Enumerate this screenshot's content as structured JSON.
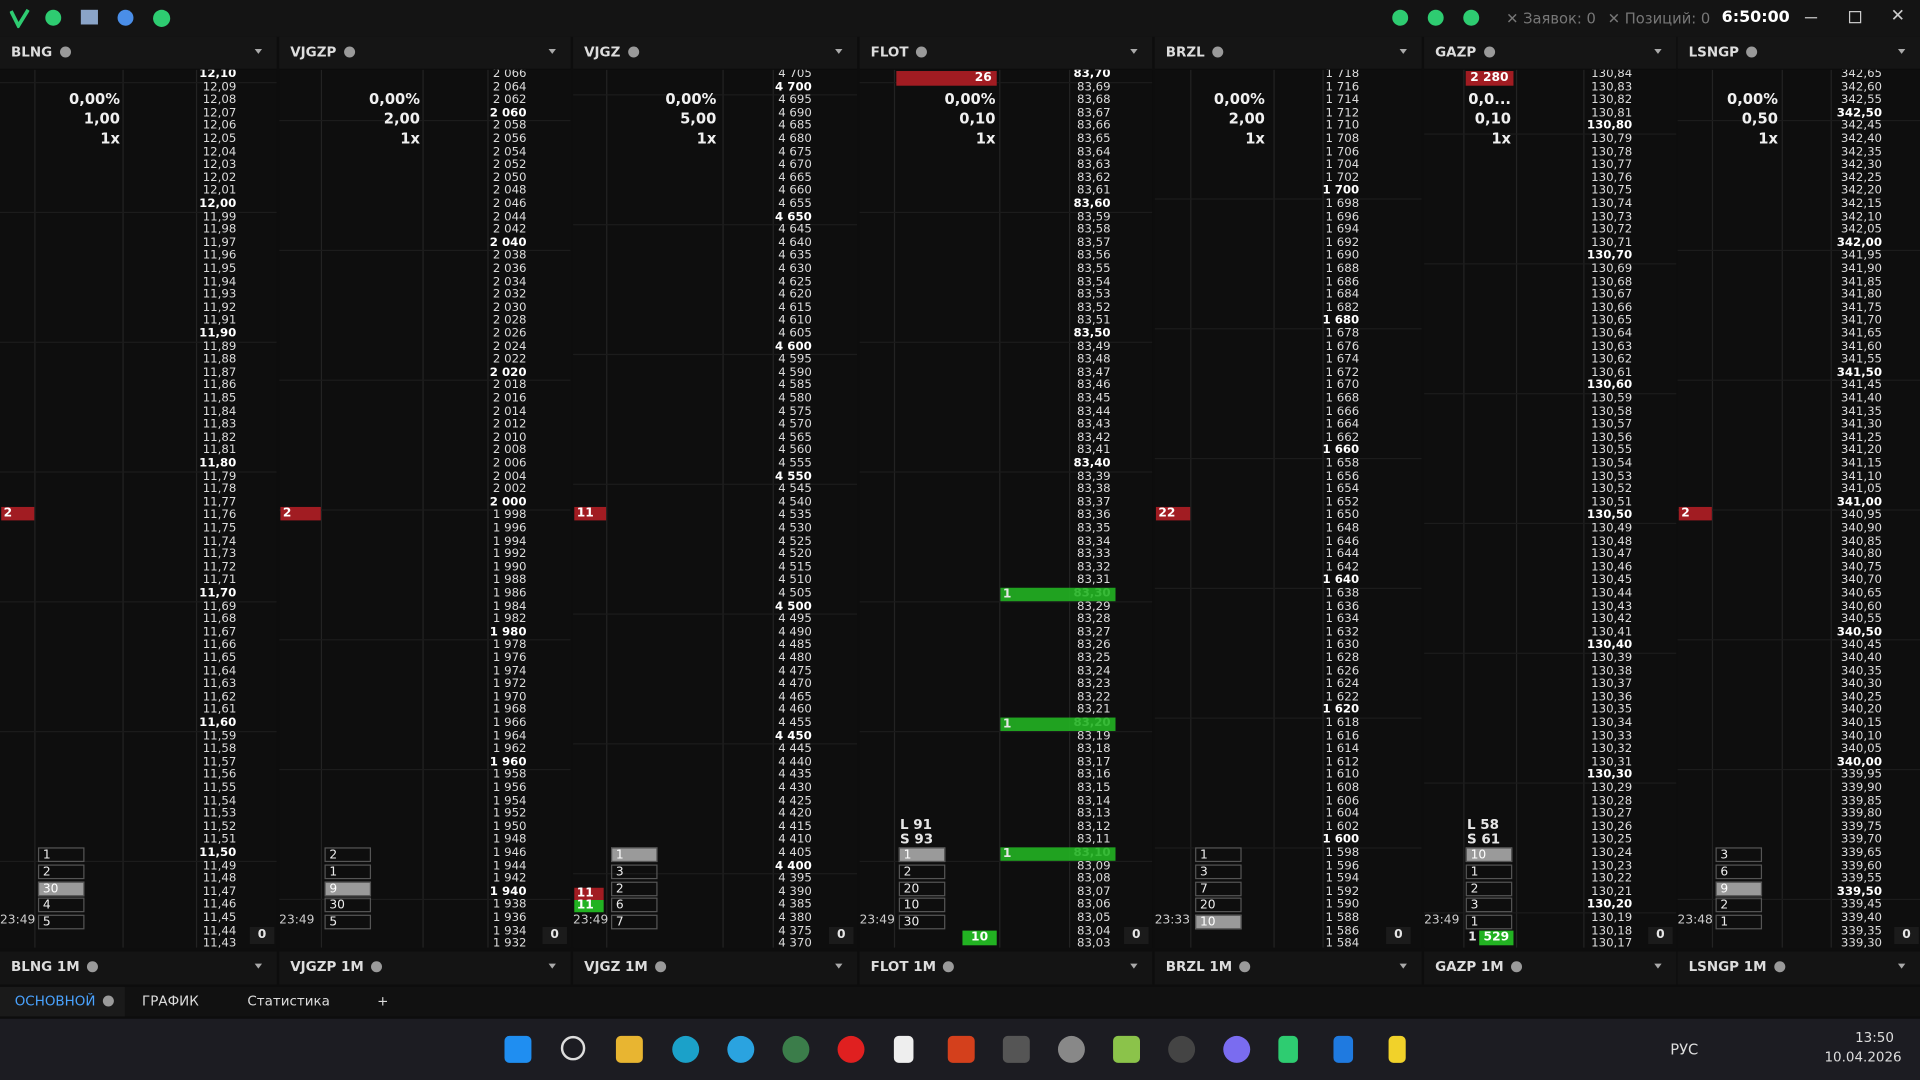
{
  "topbar": {
    "orders": "Заявок: 0",
    "positions": "Позиций: 0",
    "time": "6:50:00"
  },
  "panels": [
    {
      "name": "BLNG",
      "stats": [
        "0,00%",
        "1,00",
        "1x"
      ],
      "marker": "2",
      "sizes": [
        "1",
        "2",
        "30",
        "4",
        "5"
      ],
      "time": "23:49",
      "bottom": "0",
      "chart_tab": "BLNG 1M",
      "ladder": [
        "12,10",
        "12,09",
        "12,08",
        "12,07",
        "12,06",
        "12,05",
        "12,04",
        "12,03",
        "12,02",
        "12,01",
        "12,00",
        "11,99",
        "11,98",
        "11,97",
        "11,96",
        "11,95",
        "11,94",
        "11,93",
        "11,92",
        "11,91",
        "11,90",
        "11,89",
        "11,88",
        "11,87",
        "11,86",
        "11,85",
        "11,84",
        "11,83",
        "11,82",
        "11,81",
        "11,80",
        "11,79",
        "11,78",
        "11,77",
        "11,76",
        "11,75",
        "11,74",
        "11,73",
        "11,72",
        "11,71",
        "11,70",
        "11,69",
        "11,68",
        "11,67",
        "11,66",
        "11,65",
        "11,64",
        "11,63",
        "11,62",
        "11,61",
        "11,60",
        "11,59",
        "11,58",
        "11,57",
        "11,56",
        "11,55",
        "11,54",
        "11,53",
        "11,52",
        "11,51",
        "11,50",
        "11,49",
        "11,48",
        "11,47",
        "11,46",
        "11,45",
        "11,44",
        "11,43"
      ]
    },
    {
      "name": "VJGZP",
      "stats": [
        "0,00%",
        "2,00",
        "1x"
      ],
      "marker": "2",
      "sizes": [
        "2",
        "1",
        "9",
        "30",
        "5"
      ],
      "time": "23:49",
      "bottom": "0",
      "chart_tab": "VJGZP 1M",
      "ladder": [
        "2 066",
        "2 064",
        "2 062",
        "2 060",
        "2 058",
        "2 056",
        "2 054",
        "2 052",
        "2 050",
        "2 048",
        "2 046",
        "2 044",
        "2 042",
        "2 040",
        "2 038",
        "2 036",
        "2 034",
        "2 032",
        "2 030",
        "2 028",
        "2 026",
        "2 024",
        "2 022",
        "2 020",
        "2 018",
        "2 016",
        "2 014",
        "2 012",
        "2 010",
        "2 008",
        "2 006",
        "2 004",
        "2 002",
        "2 000",
        "1 998",
        "1 996",
        "1 994",
        "1 992",
        "1 990",
        "1 988",
        "1 986",
        "1 984",
        "1 982",
        "1 980",
        "1 978",
        "1 976",
        "1 974",
        "1 972",
        "1 970",
        "1 968",
        "1 966",
        "1 964",
        "1 962",
        "1 960",
        "1 958",
        "1 956",
        "1 954",
        "1 952",
        "1 950",
        "1 948",
        "1 946",
        "1 944",
        "1 942",
        "1 940",
        "1 938",
        "1 936",
        "1 934",
        "1 932"
      ]
    },
    {
      "name": "VJGZ",
      "stats": [
        "0,00%",
        "5,00",
        "1x"
      ],
      "marker": "11",
      "sizes": [
        "1",
        "3",
        "2",
        "6",
        "7"
      ],
      "extra": [
        "11",
        "11"
      ],
      "time": "23:49",
      "bottom": "0",
      "chart_tab": "VJGZ 1M",
      "ladder": [
        "4 705",
        "4 700",
        "4 695",
        "4 690",
        "4 685",
        "4 680",
        "4 675",
        "4 670",
        "4 665",
        "4 660",
        "4 655",
        "4 650",
        "4 645",
        "4 640",
        "4 635",
        "4 630",
        "4 625",
        "4 620",
        "4 615",
        "4 610",
        "4 605",
        "4 600",
        "4 595",
        "4 590",
        "4 585",
        "4 580",
        "4 575",
        "4 570",
        "4 565",
        "4 560",
        "4 555",
        "4 550",
        "4 545",
        "4 540",
        "4 535",
        "4 530",
        "4 525",
        "4 520",
        "4 515",
        "4 510",
        "4 505",
        "4 500",
        "4 495",
        "4 490",
        "4 485",
        "4 480",
        "4 475",
        "4 470",
        "4 465",
        "4 460",
        "4 455",
        "4 450",
        "4 445",
        "4 440",
        "4 435",
        "4 430",
        "4 425",
        "4 420",
        "4 415",
        "4 410",
        "4 405",
        "4 400",
        "4 395",
        "4 390",
        "4 385",
        "4 380",
        "4 375",
        "4 370"
      ]
    },
    {
      "name": "FLOT",
      "stats": [
        "0,00%",
        "0,10",
        "1x"
      ],
      "top_ask": "26",
      "ls": [
        "L 91",
        "S 93"
      ],
      "fills": [
        "1",
        "1",
        "1"
      ],
      "sizes": [
        "1",
        "2",
        "20",
        "10",
        "30"
      ],
      "time": "23:49",
      "volume": "10",
      "bottom": "0",
      "chart_tab": "FLOT 1M",
      "ladder": [
        "83,70",
        "83,69",
        "83,68",
        "83,67",
        "83,66",
        "83,65",
        "83,64",
        "83,63",
        "83,62",
        "83,61",
        "83,60",
        "83,59",
        "83,58",
        "83,57",
        "83,56",
        "83,55",
        "83,54",
        "83,53",
        "83,52",
        "83,51",
        "83,50",
        "83,49",
        "83,48",
        "83,47",
        "83,46",
        "83,45",
        "83,44",
        "83,43",
        "83,42",
        "83,41",
        "83,40",
        "83,39",
        "83,38",
        "83,37",
        "83,36",
        "83,35",
        "83,34",
        "83,33",
        "83,32",
        "83,31",
        "83,30",
        "83,29",
        "83,28",
        "83,27",
        "83,26",
        "83,25",
        "83,24",
        "83,23",
        "83,22",
        "83,21",
        "83,20",
        "83,19",
        "83,18",
        "83,17",
        "83,16",
        "83,15",
        "83,14",
        "83,13",
        "83,12",
        "83,11",
        "83,10",
        "83,09",
        "83,08",
        "83,07",
        "83,06",
        "83,05",
        "83,04",
        "83,03"
      ]
    },
    {
      "name": "BRZL",
      "stats": [
        "0,00%",
        "2,00",
        "1x"
      ],
      "marker": "22",
      "sizes": [
        "1",
        "3",
        "7",
        "20",
        "10"
      ],
      "time": "23:33",
      "bottom": "0",
      "chart_tab": "BRZL 1M",
      "ladder": [
        "1 718",
        "1 716",
        "1 714",
        "1 712",
        "1 710",
        "1 708",
        "1 706",
        "1 704",
        "1 702",
        "1 700",
        "1 698",
        "1 696",
        "1 694",
        "1 692",
        "1 690",
        "1 688",
        "1 686",
        "1 684",
        "1 682",
        "1 680",
        "1 678",
        "1 676",
        "1 674",
        "1 672",
        "1 670",
        "1 668",
        "1 666",
        "1 664",
        "1 662",
        "1 660",
        "1 658",
        "1 656",
        "1 654",
        "1 652",
        "1 650",
        "1 648",
        "1 646",
        "1 644",
        "1 642",
        "1 640",
        "1 638",
        "1 636",
        "1 634",
        "1 632",
        "1 630",
        "1 628",
        "1 626",
        "1 624",
        "1 622",
        "1 620",
        "1 618",
        "1 616",
        "1 614",
        "1 612",
        "1 610",
        "1 608",
        "1 606",
        "1 604",
        "1 602",
        "1 600",
        "1 598",
        "1 596",
        "1 594",
        "1 592",
        "1 590",
        "1 588",
        "1 586",
        "1 584"
      ]
    },
    {
      "name": "GAZP",
      "stats": [
        "0,0...",
        "0,10",
        "1x"
      ],
      "top_ask": "2 280",
      "ls": [
        "L 58",
        "S 61"
      ],
      "sizes": [
        "10",
        "1",
        "2",
        "3",
        "1"
      ],
      "time": "23:49",
      "last": "1",
      "volume": "529",
      "bottom": "0",
      "chart_tab": "GAZP 1M",
      "ladder": [
        "130,84",
        "130,83",
        "130,82",
        "130,81",
        "130,80",
        "130,79",
        "130,78",
        "130,77",
        "130,76",
        "130,75",
        "130,74",
        "130,73",
        "130,72",
        "130,71",
        "130,70",
        "130,69",
        "130,68",
        "130,67",
        "130,66",
        "130,65",
        "130,64",
        "130,63",
        "130,62",
        "130,61",
        "130,60",
        "130,59",
        "130,58",
        "130,57",
        "130,56",
        "130,55",
        "130,54",
        "130,53",
        "130,52",
        "130,51",
        "130,50",
        "130,49",
        "130,48",
        "130,47",
        "130,46",
        "130,45",
        "130,44",
        "130,43",
        "130,42",
        "130,41",
        "130,40",
        "130,39",
        "130,38",
        "130,37",
        "130,36",
        "130,35",
        "130,34",
        "130,33",
        "130,32",
        "130,31",
        "130,30",
        "130,29",
        "130,28",
        "130,27",
        "130,26",
        "130,25",
        "130,24",
        "130,23",
        "130,22",
        "130,21",
        "130,20",
        "130,19",
        "130,18",
        "130,17"
      ]
    },
    {
      "name": "LSNGP",
      "stats": [
        "0,00%",
        "0,50",
        "1x"
      ],
      "marker": "2",
      "sizes": [
        "3",
        "6",
        "9",
        "2",
        "1"
      ],
      "time": "23:48",
      "bottom": "0",
      "chart_tab": "LSNGP 1M",
      "ladder": [
        "342,65",
        "342,60",
        "342,55",
        "342,50",
        "342,45",
        "342,40",
        "342,35",
        "342,30",
        "342,25",
        "342,20",
        "342,15",
        "342,10",
        "342,05",
        "342,00",
        "341,95",
        "341,90",
        "341,85",
        "341,80",
        "341,75",
        "341,70",
        "341,65",
        "341,60",
        "341,55",
        "341,50",
        "341,45",
        "341,40",
        "341,35",
        "341,30",
        "341,25",
        "341,20",
        "341,15",
        "341,10",
        "341,05",
        "341,00",
        "340,95",
        "340,90",
        "340,85",
        "340,80",
        "340,75",
        "340,70",
        "340,65",
        "340,60",
        "340,55",
        "340,50",
        "340,45",
        "340,40",
        "340,35",
        "340,30",
        "340,25",
        "340,20",
        "340,15",
        "340,10",
        "340,05",
        "340,00",
        "339,95",
        "339,90",
        "339,85",
        "339,80",
        "339,75",
        "339,70",
        "339,65",
        "339,60",
        "339,55",
        "339,50",
        "339,45",
        "339,40",
        "339,35",
        "339,30"
      ]
    }
  ],
  "tabs": [
    "ОСНОВНОЙ",
    "ГРАФИК",
    "Статистика",
    "+"
  ],
  "taskbar": {
    "lang": "РУС",
    "time": "13:50",
    "date": "10.04.2026"
  }
}
